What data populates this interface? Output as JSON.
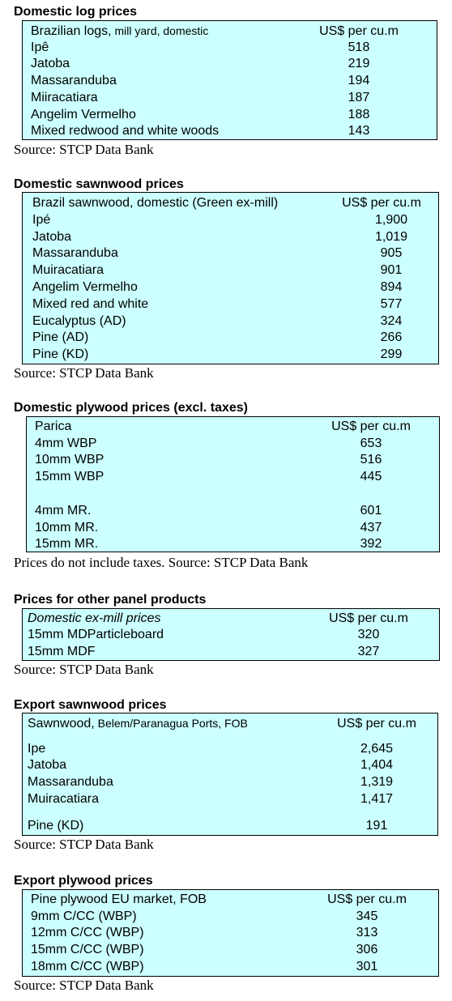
{
  "log": {
    "title": "Domestic log prices",
    "header_main": "Brazilian logs,",
    "header_sub": " mill yard, domestic",
    "unit": "US$ per cu.m",
    "rows": [
      {
        "name": "Ipê",
        "value": "518"
      },
      {
        "name": "Jatoba",
        "value": "219"
      },
      {
        "name": "Massaranduba",
        "value": "194"
      },
      {
        "name": "Miiracatiara",
        "value": "187"
      },
      {
        "name": "Angelim Vermelho",
        "value": "188"
      },
      {
        "name": "Mixed redwood and white woods",
        "value": "143"
      }
    ],
    "source": "Source: STCP Data Bank"
  },
  "sawn": {
    "title": "Domestic sawnwood prices",
    "header": "Brazil sawnwood, domestic (Green ex-mill)",
    "unit": "US$ per cu.m",
    "rows": [
      {
        "name": "Ipé",
        "value": "1,900"
      },
      {
        "name": "Jatoba",
        "value": "1,019"
      },
      {
        "name": "Massaranduba",
        "value": "905"
      },
      {
        "name": "Muiracatiara",
        "value": "901"
      },
      {
        "name": "Angelim Vermelho",
        "value": "894"
      },
      {
        "name": "Mixed red and white",
        "value": "577"
      },
      {
        "name": "Eucalyptus (AD)",
        "value": "324"
      },
      {
        "name": "Pine (AD)",
        "value": "266"
      },
      {
        "name": "Pine (KD)",
        "value": "299"
      }
    ],
    "source": "Source: STCP Data Bank"
  },
  "plywood": {
    "title": "Domestic plywood prices (excl. taxes)",
    "header": "Parica",
    "unit": "US$ per cu.m",
    "rows": [
      {
        "name": "4mm WBP",
        "value": "653"
      },
      {
        "name": "10mm WBP",
        "value": "516"
      },
      {
        "name": "15mm WBP",
        "value": "445"
      },
      {
        "name": "4mm MR.",
        "value": "601"
      },
      {
        "name": "10mm MR.",
        "value": "437"
      },
      {
        "name": "15mm MR.",
        "value": "392"
      }
    ],
    "source": "Prices do not include taxes. Source: STCP Data Bank"
  },
  "panel": {
    "title": "Prices for other panel products",
    "header": "Domestic ex-mill prices",
    "unit": "US$ per cu.m",
    "rows": [
      {
        "name": "15mm MDParticleboard",
        "value": "320"
      },
      {
        "name": "15mm MDF",
        "value": "327"
      }
    ],
    "source": "Source: STCP Data Bank"
  },
  "export_sawn": {
    "title": "Export sawnwood prices",
    "header_main": "Sawnwood,",
    "header_sub": " Belem/Paranagua Ports, FOB",
    "unit": "US$ per cu.m",
    "rows": [
      {
        "name": "Ipe",
        "value": "2,645"
      },
      {
        "name": "Jatoba",
        "value": "1,404"
      },
      {
        "name": "Massaranduba",
        "value": "1,319"
      },
      {
        "name": "Muiracatiara",
        "value": "1,417"
      },
      {
        "name": "Pine (KD)",
        "value": "191"
      }
    ],
    "source": "Source: STCP Data Bank"
  },
  "export_ply": {
    "title": "Export plywood prices",
    "header": "Pine plywood EU market, FOB",
    "unit": "US$ per cu.m",
    "rows": [
      {
        "name": "9mm C/CC (WBP)",
        "value": "345"
      },
      {
        "name": "12mm C/CC (WBP)",
        "value": "313"
      },
      {
        "name": "15mm C/CC (WBP)",
        "value": "306"
      },
      {
        "name": "18mm C/CC (WBP)",
        "value": "301"
      }
    ],
    "source": "Source: STCP Data Bank"
  }
}
